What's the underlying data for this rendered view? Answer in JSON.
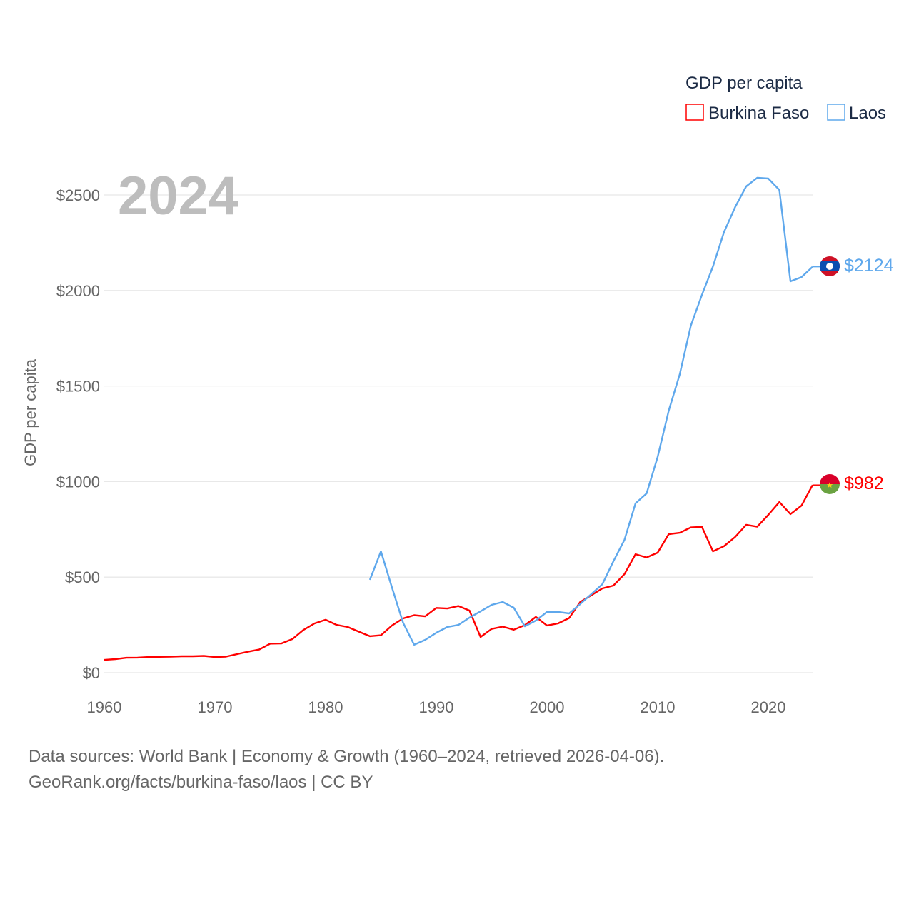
{
  "chart_data": {
    "type": "line",
    "title": "GDP per capita",
    "year_label": "2024",
    "xlabel": "",
    "ylabel": "GDP per capita",
    "xlim": [
      1960,
      2024
    ],
    "ylim": [
      0,
      2600
    ],
    "x_ticks": [
      1960,
      1970,
      1980,
      1990,
      2000,
      2010,
      2020
    ],
    "y_ticks": [
      0,
      500,
      1000,
      1500,
      2000,
      2500
    ],
    "y_tick_labels": [
      "$0",
      "$500",
      "$1000",
      "$1500",
      "$2000",
      "$2500"
    ],
    "grid": true,
    "legend_position": "top-right",
    "series": [
      {
        "name": "Burkina Faso",
        "color": "#ff0000",
        "end_label": "$982",
        "x_start": 1960,
        "values": [
          67,
          71,
          78,
          79,
          82,
          83,
          84,
          86,
          86,
          88,
          82,
          84,
          97,
          110,
          121,
          152,
          153,
          176,
          224,
          258,
          277,
          250,
          239,
          215,
          191,
          196,
          247,
          284,
          301,
          295,
          339,
          336,
          349,
          325,
          187,
          229,
          241,
          225,
          249,
          292,
          247,
          258,
          286,
          370,
          405,
          441,
          456,
          516,
          620,
          603,
          628,
          725,
          732,
          760,
          763,
          635,
          662,
          710,
          774,
          764,
          826,
          893,
          830,
          874,
          982
        ]
      },
      {
        "name": "Laos",
        "color": "#5fa8ec",
        "end_label": "$2124",
        "x_start": 1984,
        "values": [
          486,
          635,
          445,
          262,
          146,
          172,
          209,
          239,
          250,
          288,
          321,
          355,
          370,
          340,
          243,
          273,
          318,
          318,
          310,
          359,
          411,
          463,
          583,
          695,
          886,
          938,
          1129,
          1371,
          1562,
          1816,
          1977,
          2126,
          2306,
          2436,
          2545,
          2590,
          2586,
          2526,
          2048,
          2070,
          2124
        ]
      }
    ]
  },
  "footer": {
    "line1": "Data sources: World Bank | Economy & Growth (1960–2024, retrieved 2026-04-06).",
    "line2": "GeoRank.org/facts/burkina-faso/laos | CC BY"
  }
}
